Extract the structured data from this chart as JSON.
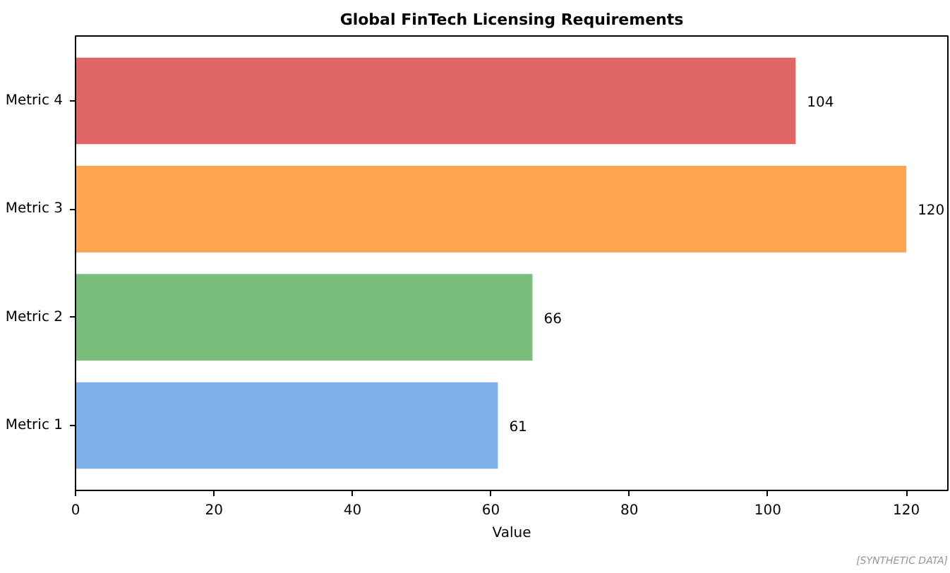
{
  "chart_data": {
    "type": "bar",
    "orientation": "horizontal",
    "title": "Global FinTech Licensing Requirements",
    "xlabel": "Value",
    "categories": [
      "Metric 4",
      "Metric 3",
      "Metric 2",
      "Metric 1"
    ],
    "values": [
      104,
      120,
      66,
      61
    ],
    "colors": [
      "#e06666",
      "#ffa552",
      "#7bbe7b",
      "#7fb0e8"
    ],
    "xlim": [
      0,
      126
    ],
    "xticks": [
      0,
      20,
      40,
      60,
      80,
      100,
      120
    ],
    "data_labels": true,
    "grid": false,
    "annotations": [
      "[SYNTHETIC DATA]"
    ]
  }
}
